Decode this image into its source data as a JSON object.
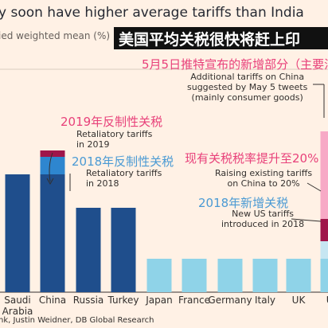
{
  "title": "y soon have higher average tariffs than India",
  "subtitle": "ied weighted mean (%)",
  "banner": "美国平均关税很快将赶上印",
  "source": "nk, Justin Weidner, DB Global Research",
  "annotations": {
    "may5_cn": "5月5日推特宣布的新增部分（主要消",
    "may5_en": "Additional tariffs on China\nsuggested by May 5 tweets\n(mainly consumer goods)",
    "ret2019_cn": "2019年反制性关税",
    "ret2019_en": "Retaliatory tariffs\nin 2019",
    "ret2018_cn": "2018年反制性关税",
    "ret2018_en": "Retaliatory tariffs\nin 2018",
    "raise_cn": "现有关税税率提升至20%",
    "raise_en": "Raising existing tariffs\non China to 20%",
    "new2018_cn": "2018年新增关税",
    "new2018_en": "New US tariffs\nintroduced in 2018"
  },
  "colors": {
    "background": "#fff1e5",
    "dark_blue": "#1f4e8c",
    "mid_blue": "#2e86cf",
    "crimson": "#a0154a",
    "light_blue": "#8fd3e8",
    "pale_blue": "#c6e6f2",
    "pink": "#f7a9c6",
    "accent_red": "#e8417a"
  },
  "chart_data": {
    "type": "bar",
    "stacked": true,
    "categories": [
      "Saudi\nArabia",
      "China",
      "Russia",
      "Turkey",
      "Japan",
      "France",
      "Germany",
      "Italy",
      "UK",
      "US"
    ],
    "series": [
      {
        "name": "base",
        "values": [
          7.4,
          7.4,
          5.3,
          5.3,
          2.1,
          2.1,
          2.1,
          2.1,
          2.1,
          2.1
        ]
      },
      {
        "name": "Retaliatory tariffs in 2018",
        "values": [
          0,
          1.1,
          0,
          0,
          0,
          0,
          0,
          0,
          0,
          0
        ]
      },
      {
        "name": "Retaliatory tariffs in 2019",
        "values": [
          0,
          0.4,
          0,
          0,
          0,
          0,
          0,
          0,
          0,
          0
        ]
      },
      {
        "name": "New US tariffs introduced in 2018",
        "values": [
          0,
          0,
          0,
          0,
          0,
          0,
          0,
          0,
          0,
          1.1
        ]
      },
      {
        "name": "Raising existing tariffs on China to 20%",
        "values": [
          0,
          0,
          0,
          0,
          0,
          0,
          0,
          0,
          0,
          1.4
        ]
      },
      {
        "name": "Additional tariffs on China suggested by May 5 tweets (mainly consumer goods)",
        "values": [
          0,
          0,
          0,
          0,
          0,
          0,
          0,
          0,
          0,
          5.5
        ]
      }
    ],
    "ylim": [
      0,
      14
    ]
  }
}
